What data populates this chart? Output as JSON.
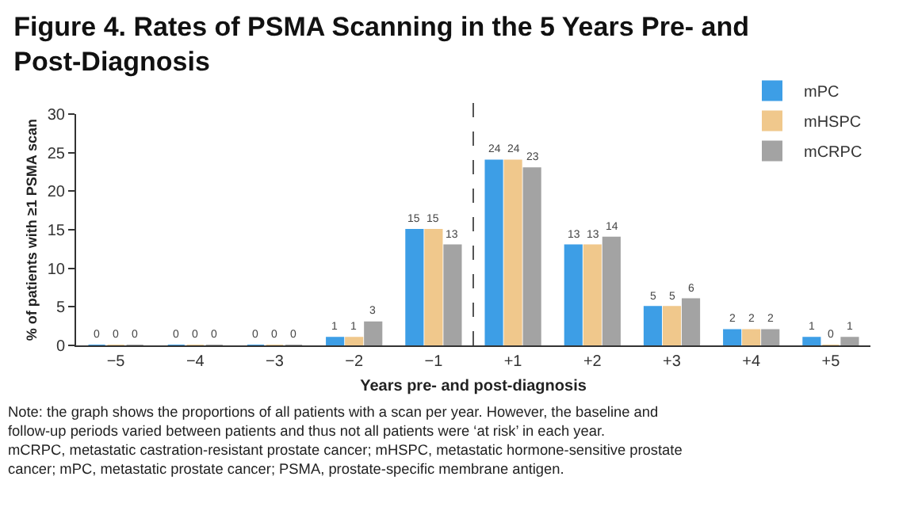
{
  "chart_data": {
    "type": "bar",
    "title": "Figure 4. Rates of PSMA Scanning in the 5 Years Pre- and Post-Diagnosis",
    "xlabel": "Years pre- and post-diagnosis",
    "ylabel": "% of patients with ≥1 PSMA scan",
    "categories": [
      "−5",
      "−4",
      "−3",
      "−2",
      "−1",
      "+1",
      "+2",
      "+3",
      "+4",
      "+5"
    ],
    "series": [
      {
        "name": "mPC",
        "color": "#3d9ee6",
        "values": [
          0,
          0,
          0,
          1,
          15,
          24,
          13,
          5,
          2,
          1
        ]
      },
      {
        "name": "mHSPC",
        "color": "#f0c88c",
        "values": [
          0,
          0,
          0,
          1,
          15,
          24,
          13,
          5,
          2,
          0
        ]
      },
      {
        "name": "mCRPC",
        "color": "#a3a3a3",
        "values": [
          0,
          0,
          0,
          3,
          13,
          23,
          14,
          6,
          2,
          1
        ]
      }
    ],
    "ylim": [
      0,
      30
    ],
    "yticks": [
      0,
      5,
      10,
      15,
      20,
      25,
      30
    ],
    "grid": false,
    "legend": "top right",
    "data_labels": true,
    "annotations": [
      "Note: the graph shows the proportions of all patients with a scan per year. However, the baseline and follow-up periods varied between patients and thus not all patients were ‘at risk’ in each year.",
      "mCRPC, metastatic castration-resistant prostate cancer; mHSPC, metastatic hormone-sensitive prostate cancer; mPC, metastatic prostate cancer; PSMA, prostate-specific membrane antigen."
    ]
  }
}
